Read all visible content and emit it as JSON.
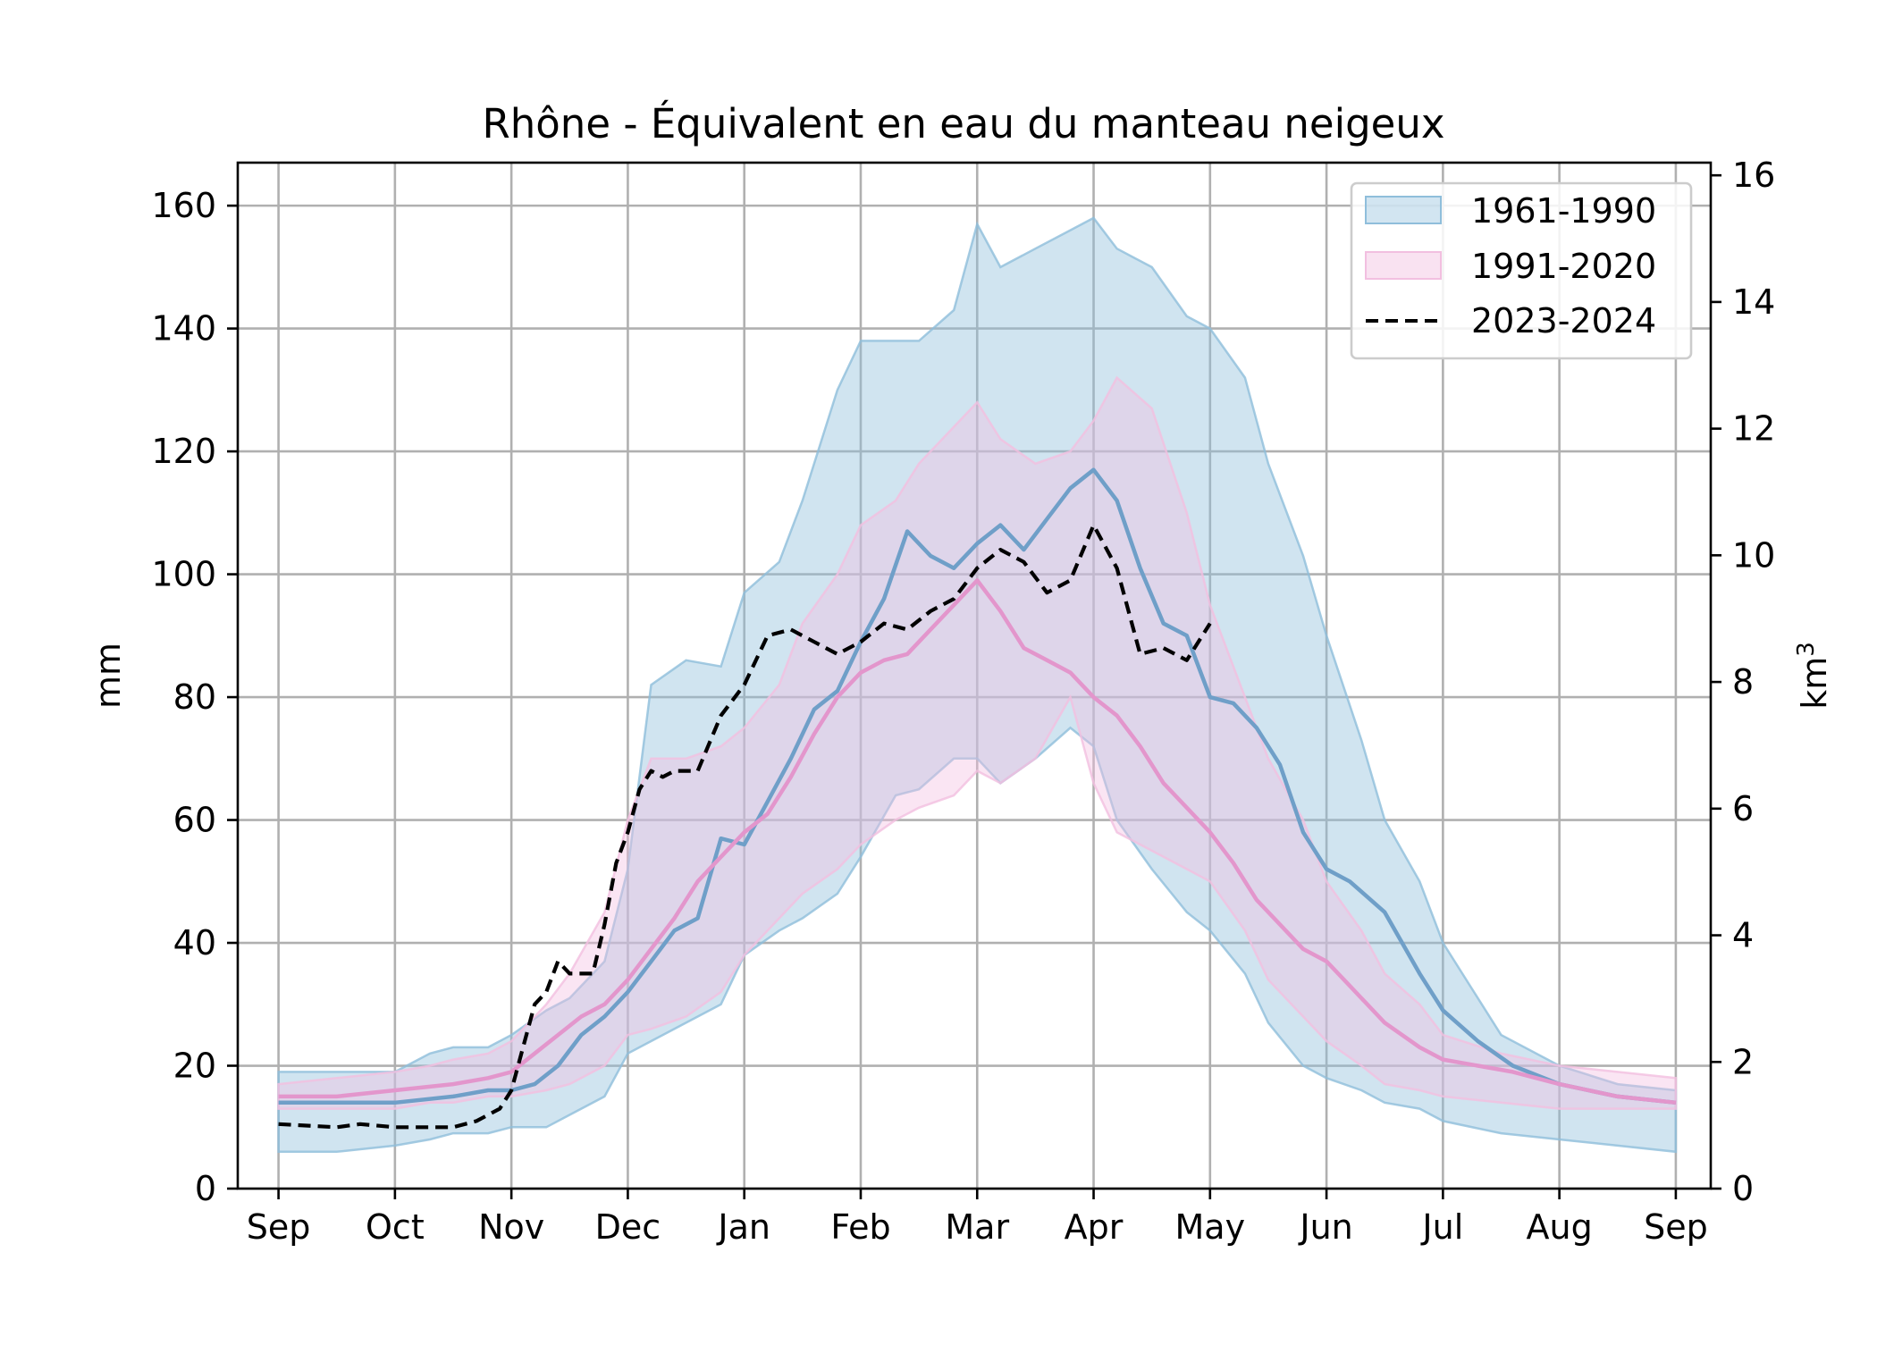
{
  "chart_data": {
    "type": "area",
    "title": "Rhône - Équivalent en eau du manteau neigeux",
    "ylabel": "mm",
    "ylabel_right": "km",
    "ylabel_right_superscript": "3",
    "xlim": [
      -0.35,
      12.3
    ],
    "ylim": [
      0,
      167
    ],
    "ylim_right": [
      0,
      16.2
    ],
    "x_tick_positions": [
      0,
      1,
      2,
      3,
      4,
      5,
      6,
      7,
      8,
      9,
      10,
      11,
      12
    ],
    "x_tick_labels": [
      "Sep",
      "Oct",
      "Nov",
      "Dec",
      "Jan",
      "Feb",
      "Mar",
      "Apr",
      "May",
      "Jun",
      "Jul",
      "Aug",
      "Sep"
    ],
    "y_ticks": [
      0,
      20,
      40,
      60,
      80,
      100,
      120,
      140,
      160
    ],
    "y_ticks_right": [
      0,
      2,
      4,
      6,
      8,
      10,
      12,
      14,
      16
    ],
    "grid": true,
    "legend_position": "top-right",
    "colors": {
      "blue_band": "#8fbedb",
      "blue_line": "#6f9fc8",
      "pink_band": "#f2bfe0",
      "pink_line": "#e396cc",
      "dashed": "#000000"
    },
    "series": [
      {
        "name": "1961-1990",
        "kind": "band",
        "x": [
          0,
          0.5,
          1,
          1.3,
          1.5,
          1.8,
          2,
          2.3,
          2.5,
          2.8,
          3,
          3.2,
          3.5,
          3.8,
          4,
          4.3,
          4.5,
          4.8,
          5,
          5.3,
          5.5,
          5.8,
          6,
          6.2,
          6.5,
          6.8,
          7,
          7.2,
          7.5,
          7.8,
          8,
          8.3,
          8.5,
          8.8,
          9,
          9.3,
          9.5,
          9.8,
          10,
          10.5,
          11,
          11.5,
          12
        ],
        "upper": [
          19,
          19,
          19,
          22,
          23,
          23,
          25,
          29,
          31,
          37,
          52,
          82,
          86,
          85,
          97,
          102,
          112,
          130,
          138,
          138,
          138,
          143,
          157,
          150,
          153,
          156,
          158,
          153,
          150,
          142,
          140,
          132,
          118,
          103,
          90,
          73,
          60,
          50,
          40,
          25,
          20,
          17,
          16
        ],
        "lower": [
          6,
          6,
          7,
          8,
          9,
          9,
          10,
          10,
          12,
          15,
          22,
          24,
          27,
          30,
          38,
          42,
          44,
          48,
          54,
          64,
          65,
          70,
          70,
          66,
          70,
          75,
          72,
          60,
          52,
          45,
          42,
          35,
          27,
          20,
          18,
          16,
          14,
          13,
          11,
          9,
          8,
          7,
          6
        ]
      },
      {
        "name": "1991-2020",
        "kind": "band",
        "x": [
          0,
          0.5,
          1,
          1.3,
          1.5,
          1.8,
          2,
          2.3,
          2.5,
          2.8,
          3,
          3.2,
          3.5,
          3.8,
          4,
          4.3,
          4.5,
          4.8,
          5,
          5.3,
          5.5,
          5.8,
          6,
          6.2,
          6.5,
          6.8,
          7,
          7.2,
          7.5,
          7.8,
          8,
          8.3,
          8.5,
          8.8,
          9,
          9.3,
          9.5,
          9.8,
          10,
          10.5,
          11,
          11.5,
          12
        ],
        "upper": [
          17,
          18,
          19,
          20,
          21,
          22,
          24,
          30,
          35,
          45,
          60,
          70,
          70,
          72,
          75,
          82,
          92,
          100,
          108,
          112,
          118,
          124,
          128,
          122,
          118,
          120,
          125,
          132,
          127,
          110,
          95,
          80,
          70,
          60,
          50,
          42,
          35,
          30,
          25,
          22,
          20,
          19,
          18
        ],
        "lower": [
          13,
          13,
          13,
          14,
          14,
          15,
          15,
          16,
          17,
          20,
          25,
          26,
          28,
          32,
          38,
          44,
          48,
          52,
          56,
          60,
          62,
          64,
          68,
          66,
          70,
          80,
          66,
          58,
          55,
          52,
          50,
          42,
          34,
          28,
          24,
          20,
          17,
          16,
          15,
          14,
          13,
          13,
          13
        ]
      },
      {
        "name": "1961-1990 median",
        "kind": "line",
        "x": [
          0,
          0.5,
          1,
          1.5,
          1.8,
          2,
          2.2,
          2.4,
          2.6,
          2.8,
          3,
          3.2,
          3.4,
          3.6,
          3.8,
          4,
          4.2,
          4.4,
          4.6,
          4.8,
          5,
          5.2,
          5.4,
          5.6,
          5.8,
          6,
          6.2,
          6.4,
          6.6,
          6.8,
          7,
          7.2,
          7.4,
          7.6,
          7.8,
          8,
          8.2,
          8.4,
          8.6,
          8.8,
          9,
          9.2,
          9.5,
          9.8,
          10,
          10.3,
          10.6,
          11,
          11.5,
          12
        ],
        "values": [
          14,
          14,
          14,
          15,
          16,
          16,
          17,
          20,
          25,
          28,
          32,
          37,
          42,
          44,
          57,
          56,
          63,
          70,
          78,
          81,
          89,
          96,
          107,
          103,
          101,
          105,
          108,
          104,
          109,
          114,
          117,
          112,
          101,
          92,
          90,
          80,
          79,
          75,
          69,
          58,
          52,
          50,
          45,
          35,
          29,
          24,
          20,
          17,
          15,
          14
        ]
      },
      {
        "name": "1991-2020 median",
        "kind": "line",
        "x": [
          0,
          0.5,
          1,
          1.5,
          1.8,
          2,
          2.2,
          2.4,
          2.6,
          2.8,
          3,
          3.2,
          3.4,
          3.6,
          3.8,
          4,
          4.2,
          4.4,
          4.6,
          4.8,
          5,
          5.2,
          5.4,
          5.6,
          5.8,
          6,
          6.2,
          6.4,
          6.6,
          6.8,
          7,
          7.2,
          7.4,
          7.6,
          7.8,
          8,
          8.2,
          8.4,
          8.6,
          8.8,
          9,
          9.2,
          9.5,
          9.8,
          10,
          10.3,
          10.6,
          11,
          11.5,
          12
        ],
        "values": [
          15,
          15,
          16,
          17,
          18,
          19,
          22,
          25,
          28,
          30,
          34,
          39,
          44,
          50,
          54,
          58,
          61,
          67,
          74,
          80,
          84,
          86,
          87,
          91,
          95,
          99,
          94,
          88,
          86,
          84,
          80,
          77,
          72,
          66,
          62,
          58,
          53,
          47,
          43,
          39,
          37,
          33,
          27,
          23,
          21,
          20,
          19,
          17,
          15,
          14
        ]
      },
      {
        "name": "2023-2024",
        "kind": "line",
        "dashed": true,
        "x": [
          0,
          0.5,
          0.7,
          1,
          1.3,
          1.5,
          1.7,
          1.9,
          2,
          2.1,
          2.2,
          2.3,
          2.4,
          2.5,
          2.6,
          2.7,
          2.8,
          2.9,
          3,
          3.1,
          3.2,
          3.3,
          3.4,
          3.6,
          3.8,
          4,
          4.2,
          4.4,
          4.6,
          4.8,
          5,
          5.2,
          5.4,
          5.6,
          5.8,
          6,
          6.2,
          6.4,
          6.6,
          6.8,
          7,
          7.2,
          7.4,
          7.6,
          7.8,
          8
        ],
        "values": [
          10.5,
          10,
          10.5,
          10,
          10,
          10,
          11,
          13,
          16,
          23,
          30,
          32,
          37,
          35,
          35,
          35,
          43,
          53,
          58,
          65,
          68,
          67,
          68,
          68,
          77,
          82,
          90,
          91,
          89,
          87,
          89,
          92,
          91,
          94,
          96,
          101,
          104,
          102,
          97,
          99,
          108,
          101,
          87,
          88,
          86,
          92
        ]
      }
    ],
    "legend": [
      {
        "label": "1961-1990",
        "style": "band-blue"
      },
      {
        "label": "1991-2020",
        "style": "band-pink"
      },
      {
        "label": "2023-2024",
        "style": "dashed"
      }
    ]
  }
}
